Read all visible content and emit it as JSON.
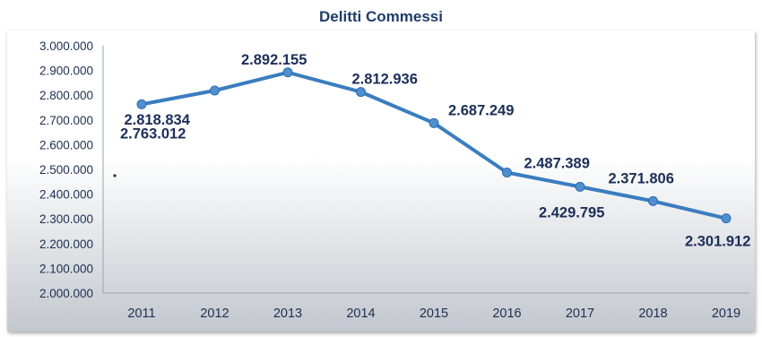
{
  "chart_data": {
    "type": "line",
    "title": "Delitti Commessi",
    "xlabel": "",
    "ylabel": "",
    "categories": [
      "2011",
      "2012",
      "2013",
      "2014",
      "2015",
      "2016",
      "2017",
      "2018",
      "2019"
    ],
    "series": [
      {
        "values": [
          2763012,
          2818834,
          2892155,
          2812936,
          2687249,
          2487389,
          2429795,
          2371806,
          2301912
        ],
        "data_labels": [
          "2.763.012",
          "2.818.834",
          "2.892.155",
          "2.812.936",
          "2.687.249",
          "2.487.389",
          "2.429.795",
          "2.371.806",
          "2.301.912"
        ],
        "color": "#3a7dc0"
      }
    ],
    "ylim": [
      2000000,
      3000000
    ],
    "yticks": [
      3000000,
      2900000,
      2800000,
      2700000,
      2600000,
      2500000,
      2400000,
      2300000,
      2200000,
      2100000,
      2000000
    ],
    "ytick_labels": [
      "3.000.000",
      "2.900.000",
      "2.800.000",
      "2.700.000",
      "2.600.000",
      "2.500.000",
      "2.400.000",
      "2.300.000",
      "2.200.000",
      "2.100.000",
      "2.000.000"
    ],
    "grid": false,
    "legend": "none"
  },
  "colors": {
    "line": "#3a7dc0",
    "marker": "#4f8fd0",
    "title": "#1f3d6a",
    "text": "#1d2f50",
    "plot_top": "#ffffff",
    "plot_bottom": "#c4c8cf"
  }
}
